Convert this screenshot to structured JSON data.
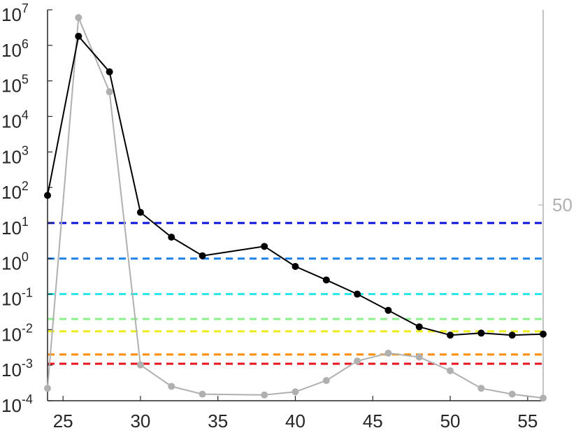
{
  "chart_data": {
    "type": "line",
    "title": "",
    "xlabel": "",
    "ylabel": "",
    "x_ticks": [
      25,
      30,
      35,
      40,
      45,
      50,
      55
    ],
    "xlim": [
      24,
      56
    ],
    "y_scale": "log",
    "ylim": [
      0.0001,
      10000000
    ],
    "y_ticks": [
      {
        "base": "10",
        "exp": "-4",
        "value": 0.0001
      },
      {
        "base": "10",
        "exp": "-3",
        "value": 0.001
      },
      {
        "base": "10",
        "exp": "-2",
        "value": 0.01
      },
      {
        "base": "10",
        "exp": "-1",
        "value": 0.1
      },
      {
        "base": "10",
        "exp": "0",
        "value": 1
      },
      {
        "base": "10",
        "exp": "1",
        "value": 10
      },
      {
        "base": "10",
        "exp": "2",
        "value": 100
      },
      {
        "base": "10",
        "exp": "3",
        "value": 1000
      },
      {
        "base": "10",
        "exp": "4",
        "value": 10000
      },
      {
        "base": "10",
        "exp": "5",
        "value": 100000
      },
      {
        "base": "10",
        "exp": "6",
        "value": 1000000
      },
      {
        "base": "10",
        "exp": "7",
        "value": 10000000
      }
    ],
    "y2_scale": "linear",
    "y2lim": [
      0,
      100
    ],
    "y2_ticks": [
      {
        "label": "50",
        "value": 50
      }
    ],
    "grid": false,
    "series": [
      {
        "axis": "left",
        "color": "#000000",
        "marker": "circle",
        "x": [
          24,
          26,
          28,
          30,
          32,
          34,
          38,
          40,
          42,
          44,
          46,
          48,
          50,
          52,
          54,
          56
        ],
        "y": [
          60,
          1800000,
          180000,
          20,
          4,
          1.2,
          2.2,
          0.6,
          0.25,
          0.1,
          0.035,
          0.012,
          0.007,
          0.008,
          0.007,
          0.0075
        ]
      },
      {
        "axis": "right",
        "color": "#b0b0b0",
        "marker": "circle",
        "x": [
          24,
          26,
          28,
          30,
          32,
          34,
          38,
          40,
          42,
          44,
          46,
          48,
          50,
          52,
          54,
          56
        ],
        "y": [
          3,
          98,
          79,
          9,
          3.5,
          1.5,
          1.3,
          2.1,
          5,
          10,
          12,
          11,
          7.5,
          3,
          1.5,
          0.5
        ]
      }
    ],
    "reference_lines": [
      {
        "y": 10,
        "color": "#0a14d8",
        "style": "dashed"
      },
      {
        "y": 1,
        "color": "#1e82e8",
        "style": "dashed"
      },
      {
        "y": 0.1,
        "color": "#2ee8e8",
        "style": "dashed"
      },
      {
        "y": 0.02,
        "color": "#8cf08c",
        "style": "dashed"
      },
      {
        "y": 0.009,
        "color": "#ecec1e",
        "style": "dashed"
      },
      {
        "y": 0.002,
        "color": "#ff8c00",
        "style": "dashed"
      },
      {
        "y": 0.0011,
        "color": "#e8141e",
        "style": "dashed"
      }
    ]
  }
}
